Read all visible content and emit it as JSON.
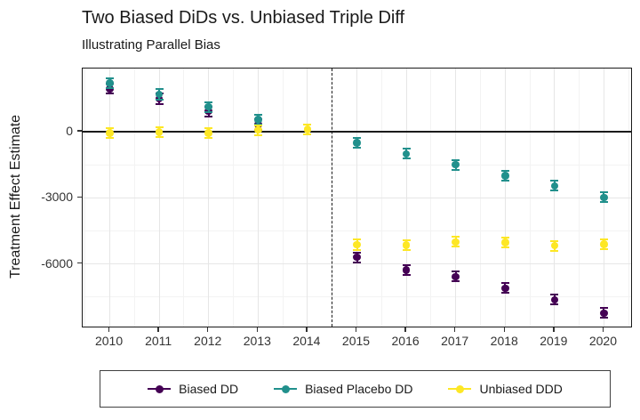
{
  "chart_data": {
    "type": "scatter",
    "title": "Two Biased DiDs vs. Unbiased Triple Diff",
    "subtitle": "Illustrating Parallel Bias",
    "xlabel": "",
    "ylabel": "Treatment Effect Estimate",
    "x": [
      2010,
      2011,
      2012,
      2013,
      2014,
      2015,
      2016,
      2017,
      2018,
      2019,
      2020
    ],
    "series": [
      {
        "name": "Biased DD",
        "color": "#440154",
        "values": [
          1950,
          1500,
          925,
          325,
          null,
          -5700,
          -6275,
          -6575,
          -7100,
          -7625,
          -8225
        ],
        "error_half_width": 225
      },
      {
        "name": "Biased Placebo DD",
        "color": "#21908C",
        "values": [
          2200,
          1700,
          1125,
          550,
          null,
          -500,
          -1000,
          -1500,
          -2000,
          -2450,
          -2975
        ],
        "error_half_width": 225
      },
      {
        "name": "Unbiased DDD",
        "color": "#FDE725",
        "values": [
          -50,
          -25,
          -50,
          75,
          100,
          -5125,
          -5150,
          -5000,
          -5025,
          -5175,
          -5100
        ],
        "error_half_width": 225
      }
    ],
    "reference_lines": {
      "hline_solid": 0,
      "vline_dashed": 2014.5
    },
    "axes": {
      "ylim": [
        -8840,
        2870
      ],
      "xlim": [
        2009.45,
        2020.55
      ],
      "y_ticks": [
        0,
        -3000,
        -6000
      ],
      "y_tick_labels": [
        "0",
        "-3000",
        "-6000"
      ],
      "y_minor": [
        -1500,
        -4500,
        -7500
      ],
      "x_ticks": [
        2010,
        2011,
        2012,
        2013,
        2014,
        2015,
        2016,
        2017,
        2018,
        2019,
        2020
      ],
      "x_minor": [
        2009.5,
        2010.5,
        2011.5,
        2012.5,
        2013.5,
        2014.5,
        2015.5,
        2016.5,
        2017.5,
        2018.5,
        2019.5,
        2020.5
      ],
      "grid": true
    },
    "legend": {
      "position": "bottom",
      "items": [
        "Biased DD",
        "Biased Placebo DD",
        "Unbiased DDD"
      ]
    }
  }
}
